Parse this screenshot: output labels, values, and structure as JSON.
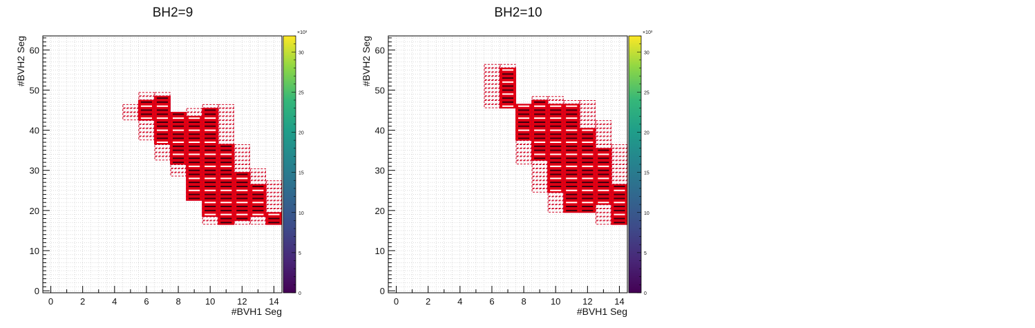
{
  "colors": {
    "frame": "#000000",
    "grid": "#cccccc",
    "box_outline": "#d00020",
    "box_fill": "#e8000f",
    "mean_line": "#ffffff"
  },
  "chart_data": [
    {
      "type": "heatmap",
      "title": "BH2=9",
      "xlabel": "#BVH1 Seg",
      "ylabel": "#BVH2 Seg",
      "xlim": [
        -0.5,
        14.5
      ],
      "ylim": [
        -0.5,
        63.5
      ],
      "xticks": [
        "0",
        "2",
        "4",
        "6",
        "8",
        "10",
        "12",
        "14"
      ],
      "yticks": [
        "0",
        "10",
        "20",
        "30",
        "40",
        "50",
        "60"
      ],
      "colorbar": {
        "range": [
          0,
          32
        ],
        "exponent": "×10³",
        "ticks": [
          "0",
          "5",
          "10",
          "15",
          "20",
          "25",
          "30"
        ]
      },
      "columns": [
        {
          "x": 5,
          "outline": [
            43,
            46
          ]
        },
        {
          "x": 6,
          "filled": [
            43,
            47
          ],
          "outline": [
            38,
            49
          ]
        },
        {
          "x": 7,
          "filled": [
            37,
            48
          ],
          "outline": [
            33,
            49
          ]
        },
        {
          "x": 8,
          "filled": [
            32,
            44
          ],
          "outline": [
            29,
            44
          ]
        },
        {
          "x": 9,
          "filled": [
            23,
            43
          ],
          "outline": [
            23,
            45
          ]
        },
        {
          "x": 10,
          "filled": [
            19,
            45
          ],
          "outline": [
            17,
            46
          ]
        },
        {
          "x": 11,
          "filled": [
            17,
            36
          ],
          "outline": [
            17,
            46
          ]
        },
        {
          "x": 12,
          "filled": [
            18,
            29
          ],
          "outline": [
            17,
            36
          ]
        },
        {
          "x": 13,
          "filled": [
            19,
            26
          ],
          "outline": [
            17,
            30
          ]
        },
        {
          "x": 14,
          "filled": [
            17,
            19
          ],
          "outline": [
            17,
            27
          ]
        }
      ]
    },
    {
      "type": "heatmap",
      "title": "BH2=10",
      "xlabel": "#BVH1 Seg",
      "ylabel": "#BVH2 Seg",
      "xlim": [
        -0.5,
        14.5
      ],
      "ylim": [
        -0.5,
        63.5
      ],
      "xticks": [
        "0",
        "2",
        "4",
        "6",
        "8",
        "10",
        "12",
        "14"
      ],
      "yticks": [
        "0",
        "10",
        "20",
        "30",
        "40",
        "50",
        "60"
      ],
      "colorbar": {
        "range": [
          0,
          32
        ],
        "exponent": "×10³",
        "ticks": [
          "0",
          "5",
          "10",
          "15",
          "20",
          "25",
          "30"
        ]
      },
      "columns": [
        {
          "x": 6,
          "outline": [
            46,
            56
          ]
        },
        {
          "x": 7,
          "filled": [
            46,
            55
          ],
          "outline": [
            46,
            56
          ]
        },
        {
          "x": 8,
          "filled": [
            38,
            46
          ],
          "outline": [
            32,
            46
          ]
        },
        {
          "x": 9,
          "filled": [
            33,
            47
          ],
          "outline": [
            25,
            48
          ]
        },
        {
          "x": 10,
          "filled": [
            25,
            46
          ],
          "outline": [
            20,
            48
          ]
        },
        {
          "x": 11,
          "filled": [
            20,
            46
          ],
          "outline": [
            20,
            47
          ]
        },
        {
          "x": 12,
          "filled": [
            20,
            40
          ],
          "outline": [
            20,
            47
          ]
        },
        {
          "x": 13,
          "filled": [
            22,
            35
          ],
          "outline": [
            17,
            42
          ]
        },
        {
          "x": 14,
          "filled": [
            17,
            26
          ],
          "outline": [
            17,
            36
          ]
        }
      ]
    }
  ]
}
